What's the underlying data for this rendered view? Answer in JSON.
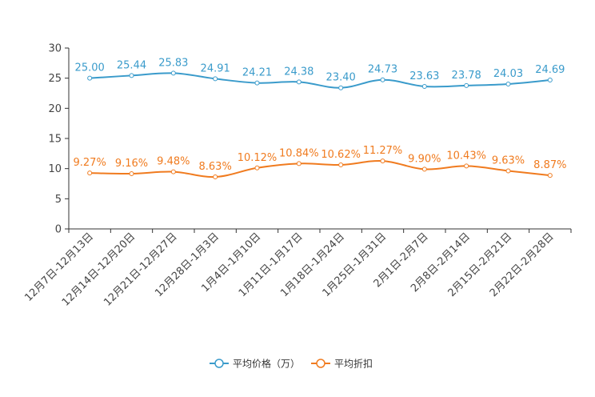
{
  "chart_data": {
    "type": "line",
    "title": "",
    "xlabel": "",
    "ylabel": "",
    "ylim": [
      0,
      30
    ],
    "yticks": [
      0,
      5,
      10,
      15,
      20,
      25,
      30
    ],
    "categories": [
      "12月7日-12月13日",
      "12月14日-12月20日",
      "12月21日-12月27日",
      "12月28日-1月3日",
      "1月4日-1月10日",
      "1月11日-1月17日",
      "1月18日-1月24日",
      "1月25日-1月31日",
      "2月1日-2月7日",
      "2月8日-2月14日",
      "2月15日-2月21日",
      "2月22日-2月28日"
    ],
    "series": [
      {
        "name": "平均价格（万）",
        "color": "#3a9bcb",
        "values": [
          25.0,
          25.44,
          25.83,
          24.91,
          24.21,
          24.38,
          23.4,
          24.73,
          23.63,
          23.78,
          24.03,
          24.69
        ],
        "labels": [
          "25.00",
          "25.44",
          "25.83",
          "24.91",
          "24.21",
          "24.38",
          "23.40",
          "24.73",
          "23.63",
          "23.78",
          "24.03",
          "24.69"
        ]
      },
      {
        "name": "平均折扣",
        "color": "#f07b1f",
        "values": [
          9.27,
          9.16,
          9.48,
          8.63,
          10.12,
          10.84,
          10.62,
          11.27,
          9.9,
          10.43,
          9.63,
          8.87
        ],
        "labels": [
          "9.27%",
          "9.16%",
          "9.48%",
          "8.63%",
          "10.12%",
          "10.84%",
          "10.62%",
          "11.27%",
          "9.90%",
          "10.43%",
          "9.63%",
          "8.87%"
        ]
      }
    ],
    "legend_position": "bottom-center",
    "grid": false
  }
}
